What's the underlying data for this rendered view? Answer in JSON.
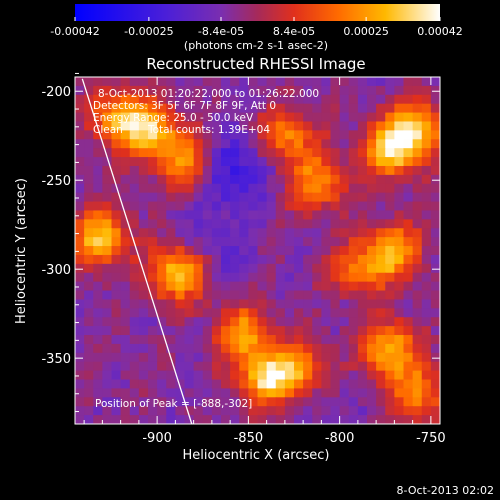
{
  "chart_data": {
    "type": "heatmap",
    "title": "Reconstructed RHESSI Image",
    "xlabel": "Heliocentric X (arcsec)",
    "ylabel": "Heliocentric Y (arcsec)",
    "xlim": [
      -945,
      -745
    ],
    "ylim": [
      -387,
      -192
    ],
    "xticks": [
      -900,
      -850,
      -800,
      -750
    ],
    "xtick_labels": [
      "-900",
      "-850",
      "-800",
      "-750"
    ],
    "yticks": [
      -200,
      -250,
      -300,
      -350
    ],
    "ytick_labels": [
      "-200",
      "-250",
      "-300",
      "-350"
    ],
    "colorbar": {
      "ticks": [
        -0.00042,
        -0.00025,
        -8.4e-05,
        8.4e-05,
        0.00025,
        0.00042
      ],
      "tick_labels": [
        "-0.00042",
        "-0.00025",
        "-8.4e-05",
        "8.4e-05",
        "0.00025",
        "0.00042"
      ],
      "unit_label": "(photons cm-2 s-1 asec-2)",
      "range": [
        -0.00042,
        0.00042
      ]
    },
    "annotations": {
      "time_range": "8-Oct-2013 01:20:22.000 to 01:26:22.000",
      "detectors": "Detectors: 3F 5F 6F 7F 8F 9F, Att 0",
      "energy": "Energy Range: 25.0 - 50.0 keV",
      "clean": "Clean",
      "counts": "Total counts: 1.39E+04",
      "peak": "Position of Peak = [-888,-302]"
    },
    "limb_line": {
      "x": [
        -941,
        -881
      ],
      "y": [
        -193,
        -387
      ]
    },
    "hot_spots": [
      {
        "x": -922,
        "y": -215,
        "value": 0.0003
      },
      {
        "x": -904,
        "y": -222,
        "value": 0.00036
      },
      {
        "x": -884,
        "y": -240,
        "value": 0.0003
      },
      {
        "x": -931,
        "y": -282,
        "value": 0.00038
      },
      {
        "x": -888,
        "y": -302,
        "value": 0.00042
      },
      {
        "x": -853,
        "y": -336,
        "value": 0.0003
      },
      {
        "x": -840,
        "y": -361,
        "value": 0.00041
      },
      {
        "x": -820,
        "y": -357,
        "value": 0.00033
      },
      {
        "x": -829,
        "y": -226,
        "value": 0.00028
      },
      {
        "x": -812,
        "y": -252,
        "value": 0.0003
      },
      {
        "x": -790,
        "y": -300,
        "value": 0.00024
      },
      {
        "x": -771,
        "y": -233,
        "value": 0.00039
      },
      {
        "x": -758,
        "y": -220,
        "value": 0.00034
      },
      {
        "x": -770,
        "y": -290,
        "value": 0.00033
      },
      {
        "x": -773,
        "y": -345,
        "value": 0.00036
      },
      {
        "x": -757,
        "y": -370,
        "value": 0.00028
      }
    ],
    "cold_spots": [
      {
        "x": -858,
        "y": -245,
        "value": -0.0002
      },
      {
        "x": -870,
        "y": -290,
        "value": -0.00012
      },
      {
        "x": -815,
        "y": -365,
        "value": -0.0001
      }
    ]
  },
  "footer": {
    "date": "8-Oct-2013 02:02"
  }
}
